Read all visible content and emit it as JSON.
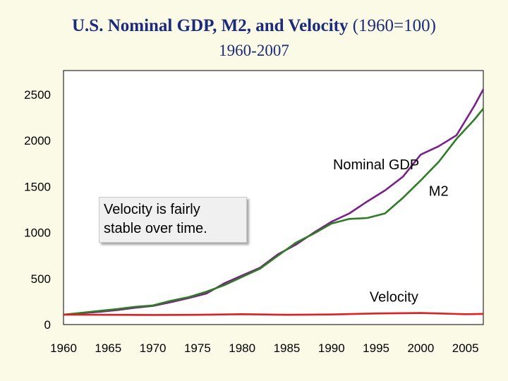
{
  "header": {
    "title_main": "U.S. Nominal GDP, M2, and Velocity",
    "title_suffix": "(1960=100)",
    "subtitle": "1960-2007"
  },
  "annotation": {
    "box_line1": "Velocity is fairly",
    "box_line2": "stable over time."
  },
  "chart_data": {
    "type": "line",
    "title": "U.S. Nominal GDP, M2, and Velocity (1960=100)",
    "subtitle": "1960-2007",
    "xlabel": "",
    "ylabel": "",
    "xlim": [
      1960,
      2007
    ],
    "ylim": [
      0,
      2500
    ],
    "x_ticks": [
      1960,
      1965,
      1970,
      1975,
      1980,
      1985,
      1990,
      1995,
      2000,
      2005
    ],
    "y_ticks": [
      0,
      500,
      1000,
      1500,
      2000,
      2500
    ],
    "grid": false,
    "legend": "none",
    "series": [
      {
        "name": "Nominal GDP",
        "color": "#7b1f8a",
        "x": [
          1960,
          1962,
          1964,
          1966,
          1968,
          1970,
          1972,
          1974,
          1976,
          1978,
          1980,
          1982,
          1984,
          1986,
          1988,
          1990,
          1992,
          1994,
          1996,
          1998,
          2000,
          2002,
          2004,
          2006,
          2007
        ],
        "y": [
          100,
          115,
          130,
          150,
          175,
          195,
          235,
          280,
          330,
          440,
          525,
          610,
          755,
          860,
          990,
          1110,
          1200,
          1330,
          1450,
          1600,
          1840,
          1930,
          2050,
          2370,
          2550
        ]
      },
      {
        "name": "M2",
        "color": "#2e7d25",
        "x": [
          1960,
          1962,
          1964,
          1966,
          1968,
          1970,
          1972,
          1974,
          1976,
          1978,
          1980,
          1982,
          1984,
          1986,
          1988,
          1990,
          1992,
          1994,
          1996,
          1998,
          2000,
          2002,
          2004,
          2006,
          2007
        ],
        "y": [
          100,
          120,
          140,
          160,
          185,
          200,
          250,
          290,
          350,
          420,
          510,
          600,
          740,
          880,
          980,
          1090,
          1140,
          1150,
          1200,
          1370,
          1560,
          1760,
          2010,
          2220,
          2340
        ]
      },
      {
        "name": "Velocity",
        "color": "#e02020",
        "x": [
          1960,
          1965,
          1970,
          1975,
          1980,
          1985,
          1990,
          1995,
          2000,
          2005,
          2007
        ],
        "y": [
          100,
          98,
          97,
          98,
          105,
          98,
          102,
          113,
          118,
          105,
          108
        ]
      }
    ],
    "annotations": [
      {
        "text": "Nominal GDP",
        "x": 1995,
        "y": 1680
      },
      {
        "text": "M2",
        "x": 2002,
        "y": 1390
      },
      {
        "text": "Velocity",
        "x": 1997,
        "y": 240
      }
    ]
  }
}
